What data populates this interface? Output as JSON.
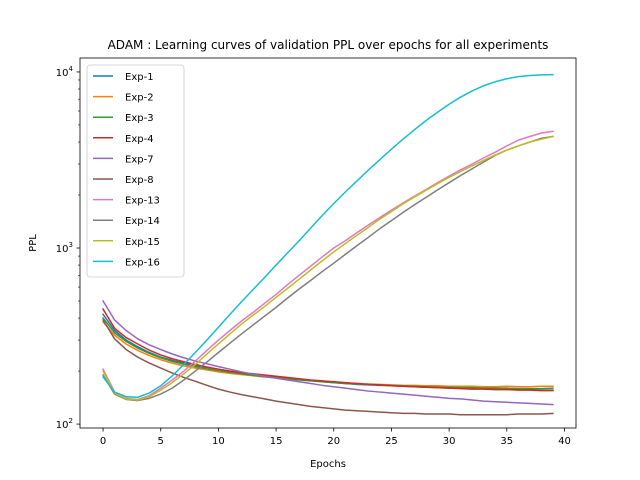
{
  "chart_data": {
    "type": "line",
    "title": "ADAM : Learning curves of validation PPL over epochs for all experiments",
    "xlabel": "Epochs",
    "ylabel": "PPL",
    "xlim": [
      -2,
      41
    ],
    "ylim": [
      95,
      12000
    ],
    "yscale": "log",
    "xticks": [
      0,
      5,
      10,
      15,
      20,
      25,
      30,
      35,
      40
    ],
    "yticks": [
      100,
      1000,
      10000
    ],
    "ytick_labels": [
      {
        "base": "10",
        "exp": "2"
      },
      {
        "base": "10",
        "exp": "3"
      },
      {
        "base": "10",
        "exp": "4"
      }
    ],
    "grid": false,
    "legend_position": "top-left",
    "series": [
      {
        "name": "Exp-1",
        "color": "#1f77b4",
        "y": [
          420,
          340,
          300,
          275,
          255,
          240,
          230,
          222,
          215,
          210,
          205,
          200,
          196,
          192,
          189,
          186,
          183,
          180,
          177,
          174,
          172,
          170,
          168,
          167,
          166,
          165,
          164,
          163,
          162,
          161,
          160,
          160,
          159,
          159,
          158,
          158,
          157,
          157,
          156,
          156
        ]
      },
      {
        "name": "Exp-2",
        "color": "#ff7f0e",
        "y": [
          380,
          320,
          285,
          262,
          245,
          232,
          222,
          214,
          208,
          203,
          198,
          194,
          191,
          188,
          185,
          183,
          181,
          179,
          177,
          175,
          173,
          171,
          170,
          169,
          168,
          167,
          166,
          166,
          165,
          165,
          164,
          164,
          164,
          163,
          163,
          164,
          163,
          163,
          164,
          164
        ]
      },
      {
        "name": "Exp-3",
        "color": "#2ca02c",
        "y": [
          400,
          330,
          295,
          270,
          252,
          238,
          227,
          219,
          212,
          206,
          201,
          197,
          193,
          189,
          186,
          183,
          180,
          178,
          176,
          174,
          172,
          170,
          169,
          168,
          167,
          166,
          165,
          164,
          163,
          162,
          162,
          161,
          161,
          160,
          160,
          160,
          159,
          159,
          159,
          160
        ]
      },
      {
        "name": "Exp-4",
        "color": "#d62728",
        "y": [
          450,
          350,
          310,
          285,
          263,
          247,
          235,
          226,
          218,
          211,
          205,
          200,
          196,
          193,
          190,
          187,
          184,
          181,
          178,
          176,
          174,
          172,
          170,
          168,
          167,
          165,
          164,
          163,
          162,
          161,
          160,
          159,
          158,
          158,
          157,
          157,
          156,
          156,
          155,
          155
        ]
      },
      {
        "name": "Exp-7",
        "color": "#9467bd",
        "y": [
          500,
          390,
          340,
          305,
          282,
          265,
          250,
          238,
          228,
          220,
          212,
          205,
          198,
          192,
          187,
          182,
          178,
          174,
          170,
          166,
          163,
          160,
          157,
          154,
          152,
          150,
          148,
          146,
          144,
          142,
          140,
          139,
          137,
          135,
          134,
          133,
          132,
          131,
          130,
          129
        ]
      },
      {
        "name": "Exp-8",
        "color": "#8c564b",
        "y": [
          390,
          305,
          265,
          240,
          222,
          208,
          195,
          184,
          175,
          166,
          158,
          152,
          147,
          143,
          139,
          135,
          132,
          129,
          126,
          124,
          122,
          120,
          119,
          118,
          117,
          116,
          115,
          115,
          114,
          114,
          114,
          113,
          113,
          113,
          113,
          113,
          114,
          114,
          114,
          115
        ]
      },
      {
        "name": "Exp-13",
        "color": "#e377c2",
        "y": [
          205,
          152,
          140,
          138,
          145,
          160,
          178,
          200,
          228,
          262,
          300,
          340,
          385,
          430,
          485,
          545,
          620,
          700,
          790,
          890,
          1000,
          1100,
          1220,
          1350,
          1490,
          1640,
          1800,
          1970,
          2150,
          2350,
          2560,
          2780,
          3000,
          3250,
          3500,
          3800,
          4100,
          4300,
          4500,
          4600
        ]
      },
      {
        "name": "Exp-14",
        "color": "#7f7f7f",
        "y": [
          190,
          148,
          138,
          136,
          140,
          148,
          160,
          178,
          200,
          225,
          255,
          288,
          325,
          365,
          410,
          460,
          520,
          585,
          655,
          735,
          820,
          920,
          1030,
          1150,
          1290,
          1430,
          1590,
          1760,
          1940,
          2140,
          2350,
          2580,
          2820,
          3080,
          3360,
          3600,
          3800,
          4000,
          4200,
          4300
        ]
      },
      {
        "name": "Exp-15",
        "color": "#bcbd22",
        "y": [
          200,
          150,
          139,
          137,
          143,
          156,
          172,
          193,
          218,
          250,
          285,
          325,
          370,
          415,
          465,
          525,
          590,
          665,
          750,
          845,
          950,
          1060,
          1180,
          1310,
          1460,
          1610,
          1780,
          1950,
          2130,
          2320,
          2520,
          2720,
          2930,
          3150,
          3380,
          3600,
          3800,
          4000,
          4150,
          4300
        ]
      },
      {
        "name": "Exp-16",
        "color": "#17becf",
        "y": [
          185,
          152,
          143,
          142,
          150,
          165,
          188,
          218,
          255,
          300,
          355,
          420,
          495,
          580,
          680,
          800,
          940,
          1100,
          1300,
          1530,
          1790,
          2080,
          2400,
          2770,
          3180,
          3640,
          4150,
          4700,
          5300,
          5900,
          6550,
          7200,
          7800,
          8350,
          8800,
          9150,
          9400,
          9550,
          9620,
          9650
        ]
      }
    ]
  }
}
